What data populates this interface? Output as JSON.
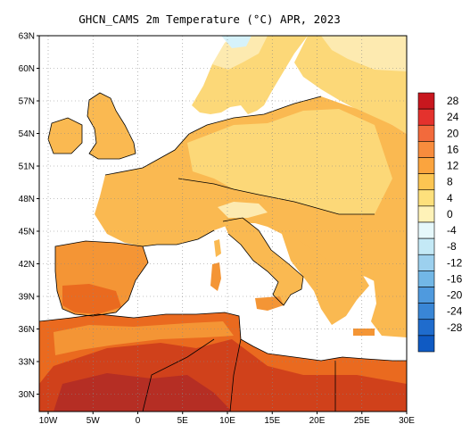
{
  "title": "GHCN_CAMS 2m Temperature (°C) APR, 2023",
  "map": {
    "lon_range": [
      -11,
      30
    ],
    "lat_range": [
      28,
      63
    ],
    "lat_ticks": [
      "63N",
      "60N",
      "57N",
      "54N",
      "51N",
      "48N",
      "45N",
      "42N",
      "39N",
      "36N",
      "33N",
      "30N"
    ],
    "lon_ticks": [
      "10W",
      "5W",
      "0",
      "5E",
      "10E",
      "15E",
      "20E",
      "25E",
      "30E"
    ],
    "ocean_color": "#ffffff",
    "land_palette": {
      "cold": "#d6f2fa",
      "cool": "#fdeab0",
      "mild": "#fcd878",
      "warm": "#fab951",
      "hot": "#f49535",
      "very_hot": "#ea6a1f",
      "hottest": "#d0411b",
      "extreme": "#b52e24"
    }
  },
  "colorbar": {
    "labels": [
      "28",
      "24",
      "20",
      "16",
      "12",
      "8",
      "4",
      "0",
      "-4",
      "-8",
      "-12",
      "-16",
      "-20",
      "-24",
      "-28"
    ],
    "colors": [
      "#c8171e",
      "#e4322d",
      "#f26a3c",
      "#f88c3d",
      "#fba43e",
      "#fcc552",
      "#fde07c",
      "#fef2b8",
      "#e6f8fb",
      "#c4e9f6",
      "#9cd0ee",
      "#72b7e6",
      "#4f9ade",
      "#3986d6",
      "#1f6ccd",
      "#0f5ac3"
    ]
  }
}
